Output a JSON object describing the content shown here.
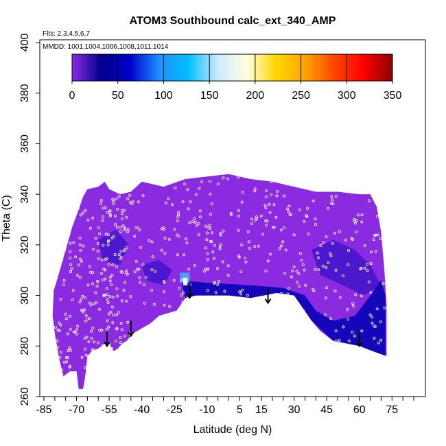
{
  "chart_data": {
    "type": "heatmap",
    "title": "ATOM3 Southbound calc_ext_340_AMP",
    "subtitle_flights": "Flts: 2,3,4,5,6,7",
    "subtitle_dates": "MMDD: 1001,1004,1006,1008,1011,1014",
    "xlabel": "Latitude (deg N)",
    "ylabel": "Theta (C)",
    "xlim": [
      -85,
      85
    ],
    "ylim": [
      260,
      400
    ],
    "x_ticks": [
      -85,
      -70,
      -55,
      -40,
      -25,
      -10,
      5,
      15,
      30,
      45,
      60,
      75
    ],
    "x_minor_step": 5,
    "y_ticks": [
      260,
      280,
      300,
      320,
      340,
      360,
      380,
      400
    ],
    "colorbar": {
      "ticks": [
        0,
        50,
        100,
        150,
        200,
        250,
        300,
        350
      ],
      "range": [
        0,
        350
      ],
      "colors": [
        "#8a2be2",
        "#00008b",
        "#0000cd",
        "#1e90ff",
        "#00bfff",
        "#cfe8ff",
        "#ffffe0",
        "#ffd700",
        "#ffa500",
        "#ff4500",
        "#ff0000",
        "#8b0000"
      ]
    },
    "field_color": "#8a2be2",
    "enhanced_color": "#0000b4",
    "marker_color": "#ffffff",
    "arrow_color": "#000000",
    "arrows": [
      {
        "lat": -56,
        "theta": 286
      },
      {
        "lat": -45,
        "theta": 290
      },
      {
        "lat": -18,
        "theta": 305
      },
      {
        "lat": 18,
        "theta": 303
      },
      {
        "lat": 60,
        "theta": 286
      }
    ]
  }
}
